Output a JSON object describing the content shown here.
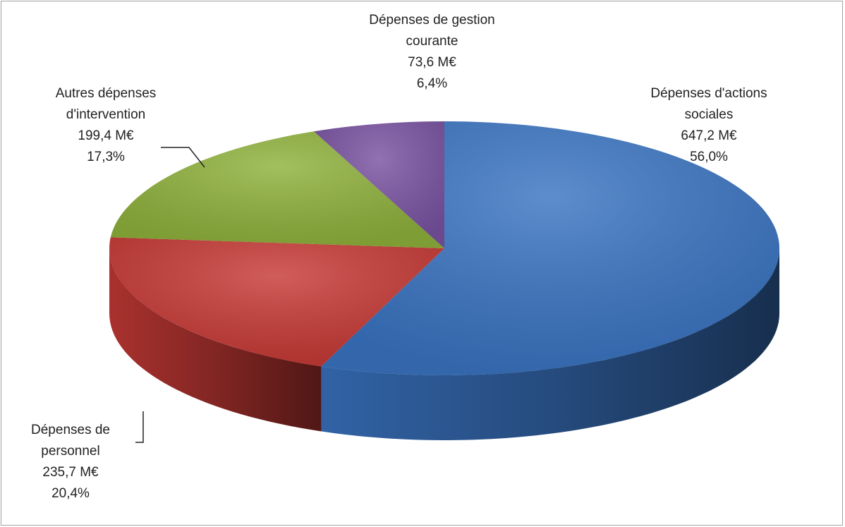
{
  "chart_data": {
    "type": "pie",
    "categories": [
      "Dépenses d'actions sociales",
      "Dépenses de personnel",
      "Autres dépenses d'intervention",
      "Dépenses de gestion courante"
    ],
    "values": [
      647.2,
      235.7,
      199.4,
      73.6
    ],
    "value_labels": [
      "647,2 M€",
      "235,7 M€",
      "199,4 M€",
      "73,6 M€"
    ],
    "percent_labels": [
      "56,0%",
      "20,4%",
      "17,3%",
      "6,4%"
    ],
    "colors": [
      "#3a74c2",
      "#c73a36",
      "#8fb23c",
      "#7a53a2"
    ]
  }
}
